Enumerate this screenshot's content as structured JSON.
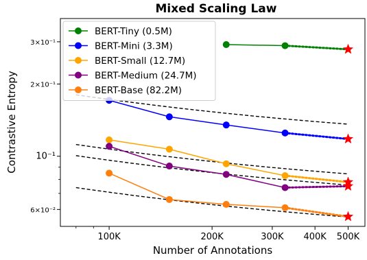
{
  "chart_data": {
    "type": "line",
    "title": "Mixed Scaling Law",
    "xlabel": "Number of Annotations",
    "ylabel": "Contrastive Entropy",
    "x_scale": "log",
    "y_scale": "log",
    "xlim": [
      72000,
      560000
    ],
    "ylim": [
      0.051,
      0.375
    ],
    "x_ticks": [
      {
        "value": 100000,
        "label": "100K"
      },
      {
        "value": 200000,
        "label": "200K"
      },
      {
        "value": 300000,
        "label": "300K"
      },
      {
        "value": 400000,
        "label": "400K"
      },
      {
        "value": 500000,
        "label": "500K"
      }
    ],
    "y_ticks": [
      {
        "value": 0.06,
        "label": "6×10⁻²",
        "size": "small"
      },
      {
        "value": 0.1,
        "label": "10⁻¹",
        "size": "large"
      },
      {
        "value": 0.2,
        "label": "2×10⁻¹",
        "size": "small"
      },
      {
        "value": 0.3,
        "label": "3×10⁻¹",
        "size": "small"
      }
    ],
    "legend_position": "top-left",
    "series": [
      {
        "name": "BERT-Tiny (0.5M)",
        "color": "#008000",
        "x": [
          220000,
          327000
        ],
        "y": [
          0.292,
          0.289
        ],
        "predicted": 0.279,
        "fit": {
          "a": 0.3398,
          "b": 0.2093,
          "c": 0.5
        }
      },
      {
        "name": "BERT-Mini (3.3M)",
        "color": "#0000ff",
        "x": [
          100000,
          150000,
          220000,
          327000
        ],
        "y": [
          0.171,
          0.146,
          0.135,
          0.125
        ],
        "predicted": 0.118,
        "fit": {
          "a": 0.1065,
          "b": 0.2093,
          "c": 0.5
        }
      },
      {
        "name": "BERT-Small (12.7M)",
        "color": "#ffa500",
        "x": [
          100000,
          150000,
          220000,
          327000
        ],
        "y": [
          0.117,
          0.107,
          0.093,
          0.083
        ],
        "predicted": 0.078,
        "fit": {
          "a": 0.0661,
          "b": 0.2093,
          "c": 0.5
        }
      },
      {
        "name": "BERT-Medium (24.7M)",
        "color": "#800080",
        "x": [
          100000,
          150000,
          220000,
          327000
        ],
        "y": [
          0.11,
          0.091,
          0.084,
          0.074
        ],
        "predicted": 0.075,
        "fit": {
          "a": 0.0594,
          "b": 0.2093,
          "c": 0.5
        }
      },
      {
        "name": "BERT-Base (82.2M)",
        "color": "#ff7f0e",
        "x": [
          100000,
          150000,
          220000,
          327000
        ],
        "y": [
          0.085,
          0.066,
          0.063,
          0.061
        ],
        "predicted": 0.056,
        "fit": {
          "a": 0.0437,
          "b": 0.2093,
          "c": 0.5
        }
      }
    ]
  }
}
